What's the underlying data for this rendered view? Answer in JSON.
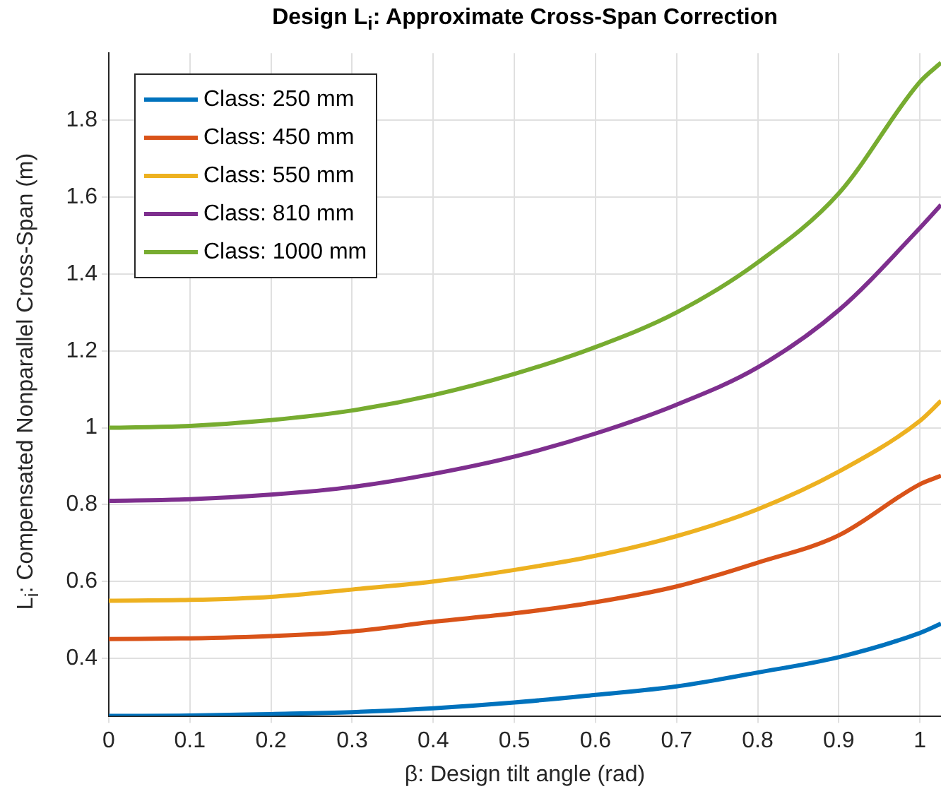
{
  "chart_data": {
    "type": "line",
    "title": "Design L$_{i}$: Approximate Cross-Span Correction",
    "xlabel": "β: Design tilt angle (rad)",
    "ylabel": "L$_{i}$: Compensated Nonparallel Cross-Span (m)",
    "x": [
      0,
      0.1,
      0.2,
      0.3,
      0.4,
      0.5,
      0.6,
      0.7,
      0.8,
      0.9,
      1.0,
      1.026
    ],
    "series": [
      {
        "name": "Class: 250 mm",
        "color": "#0072bd",
        "values": [
          0.25,
          0.251,
          0.255,
          0.26,
          0.27,
          0.285,
          0.305,
          0.327,
          0.363,
          0.403,
          0.466,
          0.49
        ]
      },
      {
        "name": "Class: 450 mm",
        "color": "#d95319",
        "values": [
          0.45,
          0.452,
          0.458,
          0.47,
          0.495,
          0.517,
          0.546,
          0.587,
          0.649,
          0.72,
          0.853,
          0.875
        ]
      },
      {
        "name": "Class: 550 mm",
        "color": "#edb120",
        "values": [
          0.55,
          0.552,
          0.56,
          0.579,
          0.6,
          0.63,
          0.667,
          0.718,
          0.788,
          0.886,
          1.018,
          1.07
        ]
      },
      {
        "name": "Class: 810 mm",
        "color": "#7e2f8e",
        "values": [
          0.81,
          0.814,
          0.826,
          0.846,
          0.88,
          0.925,
          0.985,
          1.06,
          1.157,
          1.306,
          1.52,
          1.58
        ]
      },
      {
        "name": "Class: 1000 mm",
        "color": "#77ac30",
        "values": [
          1.0,
          1.005,
          1.02,
          1.045,
          1.085,
          1.14,
          1.21,
          1.3,
          1.43,
          1.61,
          1.9,
          1.95
        ]
      }
    ],
    "xlim": [
      0,
      1.026
    ],
    "ylim": [
      0.25,
      1.975
    ],
    "xticks": [
      0,
      0.1,
      0.2,
      0.3,
      0.4,
      0.5,
      0.6,
      0.7,
      0.8,
      0.9,
      1
    ],
    "yticks": [
      0.4,
      0.6,
      0.8,
      1,
      1.2,
      1.4,
      1.6,
      1.8
    ],
    "grid": true,
    "legend": "top left",
    "marker": "none",
    "line_style": "solid"
  }
}
